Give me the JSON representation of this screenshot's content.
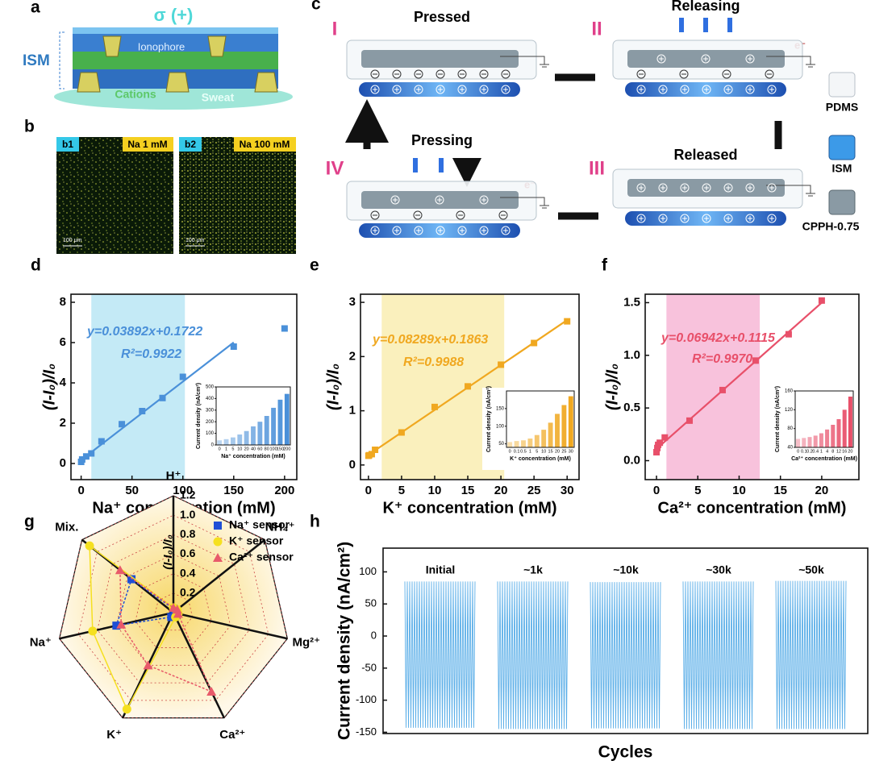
{
  "panels": {
    "a": {
      "label": "a",
      "sigma": "σ (+)",
      "ism": "ISM",
      "ionophore": "Ionophore",
      "cations": "Cations",
      "sweat": "Sweat"
    },
    "b": {
      "label": "b",
      "images": [
        {
          "tag": "b1",
          "name": "Na 1 mM",
          "scale": "100 μm"
        },
        {
          "tag": "b2",
          "name": "Na 100 mM",
          "scale": "100 μm"
        }
      ]
    },
    "c": {
      "label": "c",
      "stages": [
        {
          "numeral": "I",
          "name": "Pressed"
        },
        {
          "numeral": "II",
          "name": "Releasing"
        },
        {
          "numeral": "III",
          "name": "Released"
        },
        {
          "numeral": "IV",
          "name": "Pressing"
        }
      ],
      "electron": "e⁻",
      "legend": [
        "PDMS",
        "ISM",
        "CPPH-0.75"
      ]
    }
  },
  "chart_data": [
    {
      "type": "scatter",
      "panel": "d",
      "x": [
        0,
        1,
        5,
        10,
        20,
        40,
        60,
        80,
        100,
        150,
        200
      ],
      "values": [
        0.08,
        0.2,
        0.35,
        0.5,
        1.1,
        1.95,
        2.6,
        3.25,
        4.3,
        5.8,
        6.7
      ],
      "color": "#4a90d9",
      "xlim": [
        -10,
        212
      ],
      "ylim": [
        -0.8,
        8.4
      ],
      "xticks": [
        0,
        50,
        100,
        150,
        200
      ],
      "yticks": [
        0,
        2,
        4,
        6,
        8
      ],
      "xlabel": "Na⁺ concentration (mM)",
      "ylabel": "(I-I₀)/I₀",
      "highlight": [
        10,
        102
      ],
      "highlight_color": "#c4eaf6",
      "fit": {
        "slope": 0.03892,
        "intercept": 0.1722,
        "x": [
          0,
          150
        ],
        "equation": "y=0.03892x+0.1722",
        "r2": "R²=0.9922"
      },
      "inset": {
        "type": "bar",
        "categories": [
          "0",
          "1",
          "5",
          "10",
          "20",
          "40",
          "60",
          "80",
          "100",
          "150",
          "200"
        ],
        "values": [
          40,
          50,
          65,
          90,
          120,
          160,
          200,
          250,
          320,
          390,
          440
        ],
        "ylim": [
          0,
          500
        ],
        "yticks": [
          0,
          100,
          200,
          300,
          400,
          500
        ],
        "xlabel": "Na⁺ concentration (mM)",
        "ylabel": "Current density (nA/cm²)"
      }
    },
    {
      "type": "scatter",
      "panel": "e",
      "x": [
        0,
        0.1,
        0.5,
        1,
        5,
        10,
        15,
        20,
        25,
        30
      ],
      "values": [
        0.17,
        0.18,
        0.2,
        0.28,
        0.6,
        1.07,
        1.45,
        1.85,
        2.25,
        2.65
      ],
      "color": "#f0a820",
      "xlim": [
        -1.2,
        31.8
      ],
      "ylim": [
        -0.27,
        3.15
      ],
      "xticks": [
        0,
        5,
        10,
        15,
        20,
        25,
        30
      ],
      "yticks": [
        0,
        1,
        2,
        3
      ],
      "xlabel": "K⁺ concentration (mM)",
      "ylabel": "(I-I₀)/I₀",
      "highlight": [
        2,
        20.5
      ],
      "highlight_color": "#faf0bd",
      "fit": {
        "slope": 0.08289,
        "intercept": 0.1863,
        "x": [
          0,
          30
        ],
        "equation": "y=0.08289x+0.1863",
        "r2": "R²=0.9988"
      },
      "inset": {
        "type": "bar",
        "categories": [
          "0",
          "0.1",
          "0.5",
          "1",
          "5",
          "10",
          "15",
          "20",
          "25",
          "30"
        ],
        "values": [
          55,
          58,
          60,
          65,
          75,
          90,
          110,
          135,
          160,
          185
        ],
        "ylim": [
          40,
          200
        ],
        "yticks": [
          50,
          100,
          150
        ],
        "xlabel": "K⁺ concentration (mM)",
        "ylabel": "Current density (nA/cm²)"
      }
    },
    {
      "type": "scatter",
      "panel": "f",
      "x": [
        0,
        0.1,
        0.2,
        0.4,
        1,
        4,
        8,
        12,
        16,
        20
      ],
      "values": [
        0.08,
        0.12,
        0.15,
        0.17,
        0.22,
        0.38,
        0.67,
        0.95,
        1.2,
        1.52
      ],
      "color": "#e8506a",
      "xlim": [
        -1.37,
        24.5
      ],
      "ylim": [
        -0.18,
        1.58
      ],
      "xticks": [
        0,
        5,
        10,
        15,
        20
      ],
      "yticks": [
        {
          "value": 0,
          "label": "0.0"
        },
        0.5,
        {
          "value": 1,
          "label": "1.0"
        },
        1.5
      ],
      "xlabel": "Ca²⁺ concentration (mM)",
      "ylabel": "(I-I₀)/I₀",
      "highlight": [
        1.2,
        12.5
      ],
      "highlight_color": "#f8c2dc",
      "fit": {
        "slope": 0.06942,
        "intercept": 0.1115,
        "x": [
          0,
          20
        ],
        "equation": "y=0.06942x+0.1115",
        "r2": "R²=0.9970"
      },
      "inset": {
        "type": "bar",
        "categories": [
          "0",
          "0.1",
          "0.2",
          "0.4",
          "1",
          "4",
          "8",
          "12",
          "16",
          "20"
        ],
        "values": [
          58,
          60,
          62,
          65,
          70,
          78,
          88,
          100,
          120,
          148
        ],
        "ylim": [
          40,
          160
        ],
        "yticks": [
          40,
          80,
          120,
          160
        ],
        "xlabel": "Ca²⁺ concentration (mM)",
        "ylabel": "Current density (nA/cm²)"
      }
    },
    {
      "type": "radar",
      "panel": "g",
      "axes": [
        "H⁺",
        "NH₄⁺",
        "Mg²⁺",
        "Ca²⁺",
        "K⁺",
        "Na⁺",
        "Mix."
      ],
      "rlim": [
        0,
        1.2
      ],
      "rticks": [
        0.2,
        0.4,
        0.6,
        0.8,
        {
          "value": 1,
          "label": "1.0"
        },
        1.2
      ],
      "rlabel": "(I-I₀)/I₀",
      "series": [
        {
          "name": "Na⁺ sensor",
          "color": "#1f4fd6",
          "marker": "square",
          "values": [
            0.04,
            0.04,
            0.04,
            0.04,
            0.05,
            0.6,
            0.55
          ]
        },
        {
          "name": "K⁺ sensor",
          "color": "#f5e020",
          "marker": "circle",
          "values": [
            0.05,
            0.05,
            0.05,
            0.05,
            1.1,
            0.85,
            1.1
          ]
        },
        {
          "name": "Ca²⁺ sensor",
          "color": "#e85a6a",
          "marker": "triangle",
          "values": [
            0.05,
            0.05,
            0.05,
            0.9,
            0.6,
            0.55,
            0.7
          ]
        }
      ]
    },
    {
      "type": "signal",
      "panel": "h",
      "segments": [
        {
          "label": "Initial",
          "max": 85,
          "min": -143
        },
        {
          "label": "~1k",
          "max": 85,
          "min": -145
        },
        {
          "label": "~10k",
          "max": 84,
          "min": -144
        },
        {
          "label": "~30k",
          "max": 85,
          "min": -145
        },
        {
          "label": "~50k",
          "max": 86,
          "min": -145
        }
      ],
      "color": "#5aaee8",
      "ylim": [
        -152,
        137
      ],
      "yticks": [
        -150,
        -100,
        -50,
        0,
        50,
        100
      ],
      "ylabel": "Current density (nA/cm²)",
      "xlabel": "Cycles"
    }
  ]
}
